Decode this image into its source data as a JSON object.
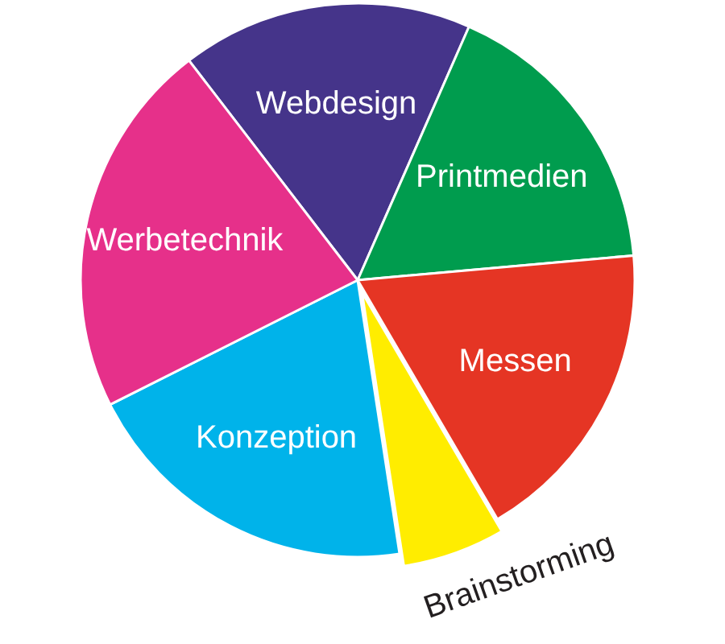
{
  "chart_data": {
    "type": "pie",
    "categories": [
      "Webdesign",
      "Printmedien",
      "Messen",
      "Brainstorming",
      "Konzeption",
      "Werbetechnik"
    ],
    "values": [
      17,
      17,
      18,
      6,
      20,
      22
    ],
    "colors": [
      "#45348a",
      "#009c4e",
      "#e53524",
      "#ffed00",
      "#00b3ea",
      "#e6308a"
    ]
  }
}
